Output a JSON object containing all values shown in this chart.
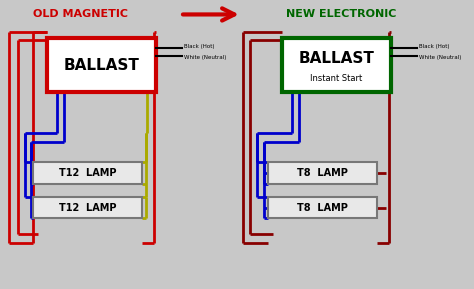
{
  "bg_color": "#c8c8c8",
  "diagram_bg": "#c0c0c0",
  "title_old": "OLD MAGNETIC",
  "title_new": "NEW ELECTRONIC",
  "title_old_color": "#cc0000",
  "title_new_color": "#006600",
  "arrow_color": "#cc0000",
  "ballast_label": "BALLAST",
  "instant_start": "Instant Start",
  "lamp_label1": "T12  LAMP",
  "lamp_label2": "T8  LAMP",
  "wire_red": "#cc0000",
  "wire_blue": "#0000cc",
  "wire_yellow": "#aaaa00",
  "wire_dark_red": "#880000",
  "border_red": "#cc0000",
  "border_green": "#006600",
  "power_label_black": "Black (Hot)",
  "power_label_white": "White (Neutral)"
}
